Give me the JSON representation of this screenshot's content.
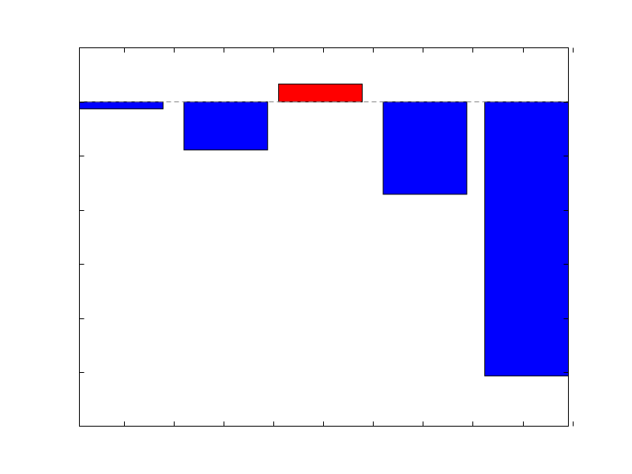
{
  "chart_data": {
    "type": "bar",
    "title": "",
    "xlabel": "",
    "ylabel": "",
    "x_tick_labels_shown": false,
    "y_tick_labels_shown": false,
    "baseline": 0,
    "baseline_style": "dashed",
    "ylim": [
      -6,
      1
    ],
    "x_ticks": [
      0.45,
      0.95,
      1.45,
      1.95,
      2.45,
      2.95,
      3.45,
      3.95,
      4.45,
      4.95
    ],
    "y_ticks": [
      -5,
      -4,
      -3,
      -2,
      -1,
      0
    ],
    "grid": false,
    "legend": "none",
    "bars": [
      {
        "x0": 0.0,
        "x1": 0.84,
        "value": -0.13,
        "color": "#0000ff"
      },
      {
        "x0": 1.05,
        "x1": 1.89,
        "value": -0.89,
        "color": "#0000ff"
      },
      {
        "x0": 2.0,
        "x1": 2.84,
        "value": 0.33,
        "color": "#ff0000"
      },
      {
        "x0": 3.05,
        "x1": 3.89,
        "value": -1.71,
        "color": "#0000ff"
      },
      {
        "x0": 4.07,
        "x1": 4.91,
        "value": -5.07,
        "color": "#0000ff"
      }
    ],
    "xlim": [
      0.0,
      4.91
    ],
    "colors": {
      "negative": "#0000ff",
      "positive": "#ff0000",
      "edge": "#000000",
      "baseline": "#808080",
      "background": "#ffffff"
    }
  }
}
